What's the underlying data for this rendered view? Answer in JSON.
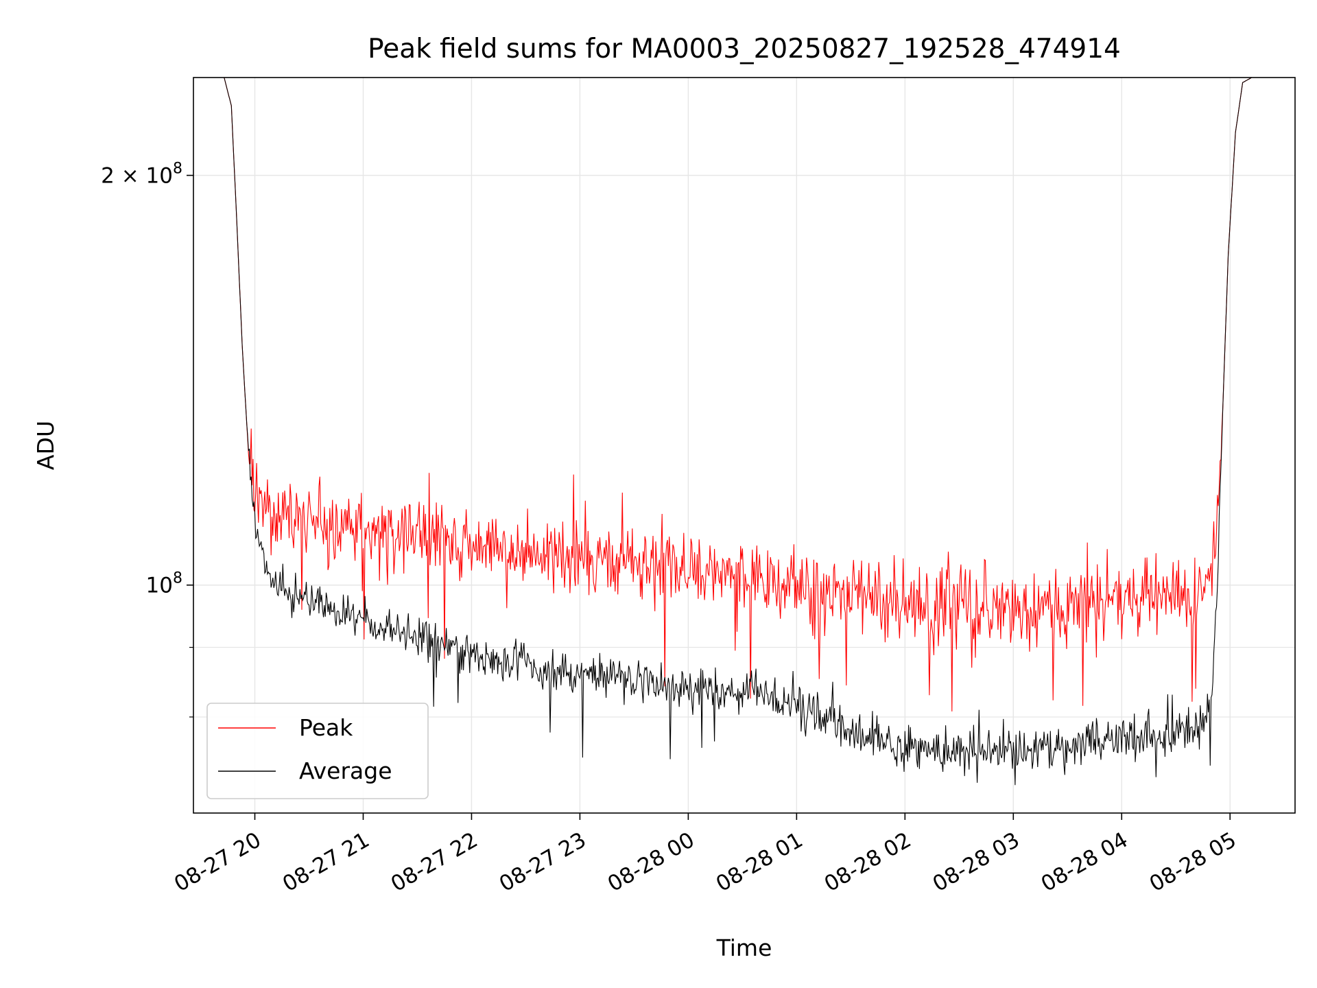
{
  "chart_data": {
    "type": "line",
    "title": "Peak field sums for MA0003_20250827_192528_474914",
    "xlabel": "Time",
    "ylabel": "ADU",
    "yscale": "log",
    "grid": true,
    "legend_position": "lower-left",
    "x_range": [
      "2025-08-27 19:26",
      "2025-08-28 05:36"
    ],
    "ylim": [
      68000000,
      236000000
    ],
    "x_ticks": [
      {
        "at": "2025-08-27 20:00",
        "label": "08-27 20"
      },
      {
        "at": "2025-08-27 21:00",
        "label": "08-27 21"
      },
      {
        "at": "2025-08-27 22:00",
        "label": "08-27 22"
      },
      {
        "at": "2025-08-27 23:00",
        "label": "08-27 23"
      },
      {
        "at": "2025-08-28 00:00",
        "label": "08-28 00"
      },
      {
        "at": "2025-08-28 01:00",
        "label": "08-28 01"
      },
      {
        "at": "2025-08-28 02:00",
        "label": "08-28 02"
      },
      {
        "at": "2025-08-28 03:00",
        "label": "08-28 03"
      },
      {
        "at": "2025-08-28 04:00",
        "label": "08-28 04"
      },
      {
        "at": "2025-08-28 05:00",
        "label": "08-28 05"
      }
    ],
    "y_ticks": [
      {
        "value": 200000000,
        "label": "2 × 10^8",
        "mantissa": "2 × 10",
        "exponent": "8"
      },
      {
        "value": 100000000,
        "label": "10^8",
        "mantissa": "10",
        "exponent": "8"
      }
    ],
    "y_minor_ticks": [
      80000000,
      90000000
    ],
    "series": [
      {
        "name": "Peak",
        "color": "#ff0000",
        "noise": 3200000,
        "x": [
          "2025-08-27 19:26",
          "2025-08-27 19:43",
          "2025-08-27 19:47",
          "2025-08-27 19:50",
          "2025-08-27 19:53",
          "2025-08-27 19:56",
          "2025-08-27 19:59",
          "2025-08-27 20:02",
          "2025-08-27 20:05",
          "2025-08-27 20:10",
          "2025-08-27 20:20",
          "2025-08-27 21:00",
          "2025-08-27 22:00",
          "2025-08-27 23:00",
          "2025-08-28 00:00",
          "2025-08-28 01:00",
          "2025-08-28 02:00",
          "2025-08-28 03:00",
          "2025-08-28 04:00",
          "2025-08-28 04:35",
          "2025-08-28 04:45",
          "2025-08-28 04:50",
          "2025-08-28 04:53",
          "2025-08-28 04:56",
          "2025-08-28 04:59",
          "2025-08-28 05:03",
          "2025-08-28 05:07",
          "2025-08-28 05:12",
          "2025-08-28 05:36"
        ],
        "y": [
          236000000,
          236000000,
          225000000,
          185000000,
          150000000,
          128000000,
          120000000,
          117000000,
          115000000,
          113000000,
          112000000,
          110000000,
          107000000,
          104500000,
          103000000,
          100000000,
          97000000,
          96500000,
          97500000,
          98000000,
          100000000,
          103000000,
          112000000,
          135000000,
          175000000,
          215000000,
          234000000,
          236000000,
          236000000
        ]
      },
      {
        "name": "Average",
        "color": "#000000",
        "noise": 1500000,
        "x": [
          "2025-08-27 19:26",
          "2025-08-27 19:43",
          "2025-08-27 19:47",
          "2025-08-27 19:50",
          "2025-08-27 19:53",
          "2025-08-27 19:56",
          "2025-08-27 19:59",
          "2025-08-27 20:02",
          "2025-08-27 20:05",
          "2025-08-27 20:08",
          "2025-08-27 20:12",
          "2025-08-27 20:20",
          "2025-08-27 21:00",
          "2025-08-27 22:00",
          "2025-08-27 23:00",
          "2025-08-28 00:00",
          "2025-08-28 00:40",
          "2025-08-28 01:00",
          "2025-08-28 01:30",
          "2025-08-28 02:00",
          "2025-08-28 03:00",
          "2025-08-28 04:00",
          "2025-08-28 04:45",
          "2025-08-28 04:50",
          "2025-08-28 04:53",
          "2025-08-28 04:56",
          "2025-08-28 04:59",
          "2025-08-28 05:03",
          "2025-08-28 05:07",
          "2025-08-28 05:12",
          "2025-08-28 05:36"
        ],
        "y": [
          236000000,
          236000000,
          225000000,
          185000000,
          150000000,
          128000000,
          115000000,
          108000000,
          103000000,
          100500000,
          99000000,
          98000000,
          94000000,
          89000000,
          86000000,
          84000000,
          83500000,
          81500000,
          78000000,
          75500000,
          75500000,
          77000000,
          78500000,
          84000000,
          100000000,
          135000000,
          175000000,
          215000000,
          234000000,
          236000000,
          236000000
        ]
      }
    ]
  }
}
